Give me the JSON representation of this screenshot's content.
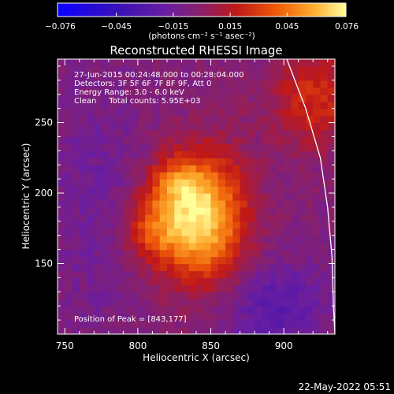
{
  "chart_data": {
    "type": "heatmap",
    "title": "Reconstructed RHESSI Image",
    "xlabel": "Heliocentric X (arcsec)",
    "ylabel": "Heliocentric Y (arcsec)",
    "xlim": [
      745,
      935
    ],
    "ylim": [
      100,
      295
    ],
    "x_ticks": [
      750,
      800,
      850,
      900
    ],
    "y_ticks": [
      150,
      200,
      250
    ],
    "colorbar": {
      "range": [
        -0.076,
        0.076
      ],
      "tick_values": [
        -0.076,
        -0.045,
        -0.015,
        0.015,
        0.045,
        0.076
      ],
      "tick_labels": [
        "−0.076",
        "−0.045",
        "−0.015",
        "0.015",
        "0.045",
        "0.076"
      ],
      "unit_label": "(photons cm⁻² s⁻¹ asec⁻²)"
    },
    "annotations": [
      "27-Jun-2015 00:24:48.000 to 00:28:04.000",
      "Detectors: 3F 5F 6F 7F 8F 9F, Att 0",
      "Energy Range: 3.0 - 6.0 keV",
      "Clean     Total counts: 5.95E+03"
    ],
    "peak_label": "Position of Peak = [843,177]",
    "peak": {
      "x": 843,
      "y": 177,
      "value": 0.076
    },
    "sources": [
      {
        "x": 843,
        "y": 183,
        "sx": 21,
        "sy": 31,
        "amp": 0.076
      },
      {
        "x": 810,
        "y": 175,
        "sx": 15,
        "sy": 17,
        "amp": 0.03
      },
      {
        "x": 826,
        "y": 207,
        "sx": 13,
        "sy": 11,
        "amp": 0.024
      },
      {
        "x": 922,
        "y": 268,
        "sx": 22,
        "sy": 24,
        "amp": 0.03
      },
      {
        "x": 895,
        "y": 118,
        "sx": 24,
        "sy": 22,
        "amp": -0.022
      },
      {
        "x": 772,
        "y": 195,
        "sx": 22,
        "sy": 60,
        "amp": -0.01
      }
    ],
    "limb_arc": [
      [
        902,
        295
      ],
      [
        915,
        260
      ],
      [
        925,
        225
      ],
      [
        930,
        190
      ],
      [
        933,
        155
      ],
      [
        934,
        120
      ],
      [
        935,
        100
      ]
    ]
  },
  "timestamp": "22-May-2022 05:51"
}
